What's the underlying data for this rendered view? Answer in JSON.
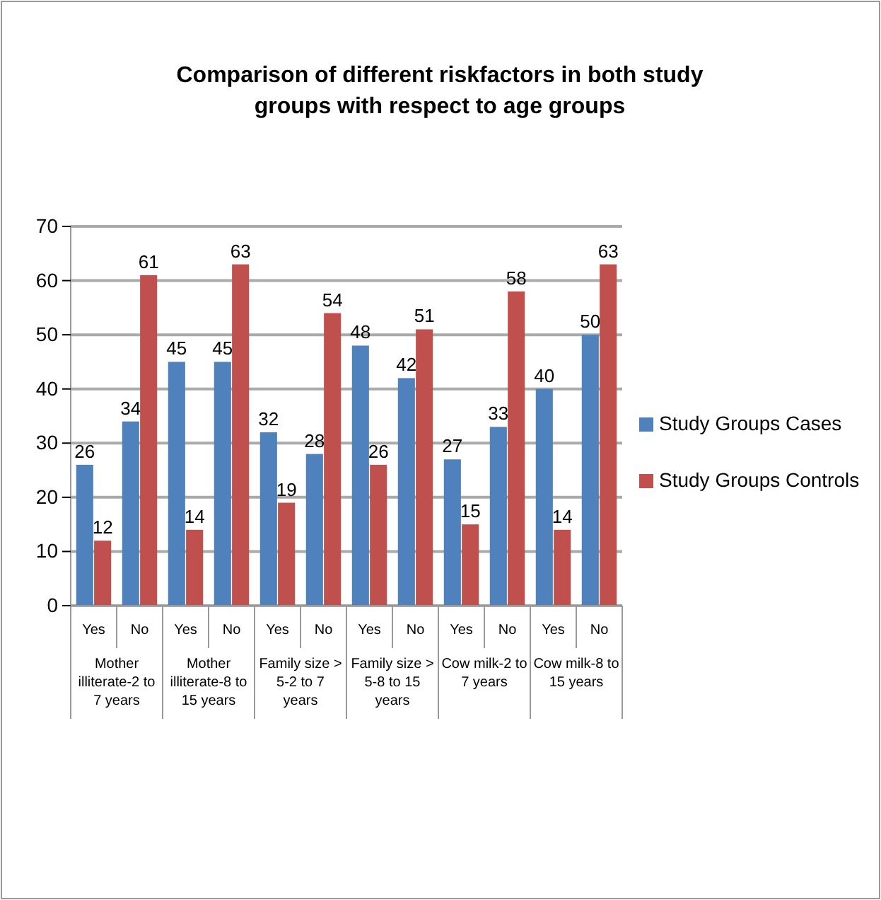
{
  "chart_data": {
    "type": "bar",
    "title": "Comparison of different riskfactors in both study groups with respect to age groups",
    "categories": [
      "Yes",
      "No",
      "Yes",
      "No",
      "Yes",
      "No",
      "Yes",
      "No",
      "Yes",
      "No",
      "Yes",
      "No"
    ],
    "series": [
      {
        "name": "Study Groups Cases",
        "color": "#4f81bd",
        "values": [
          26,
          34,
          45,
          45,
          32,
          28,
          48,
          42,
          27,
          33,
          40,
          50
        ]
      },
      {
        "name": "Study Groups Controls",
        "color": "#c0504d",
        "values": [
          12,
          61,
          14,
          63,
          19,
          54,
          26,
          51,
          15,
          58,
          14,
          63
        ]
      }
    ],
    "annotations": [
      "Mother illiterate-2 to 7 years",
      "Mother illiterate-8 to 15 years",
      "Family size > 5-2 to 7 years",
      "Family size > 5-8 to 15 years",
      "Cow milk-2 to 7 years",
      "Cow milk-8 to 15 years"
    ],
    "ylim": [
      0,
      70
    ],
    "yticks": [
      0,
      10,
      20,
      30,
      40,
      50,
      60,
      70
    ],
    "grid": "y",
    "legend": "right",
    "data_labels": true
  }
}
